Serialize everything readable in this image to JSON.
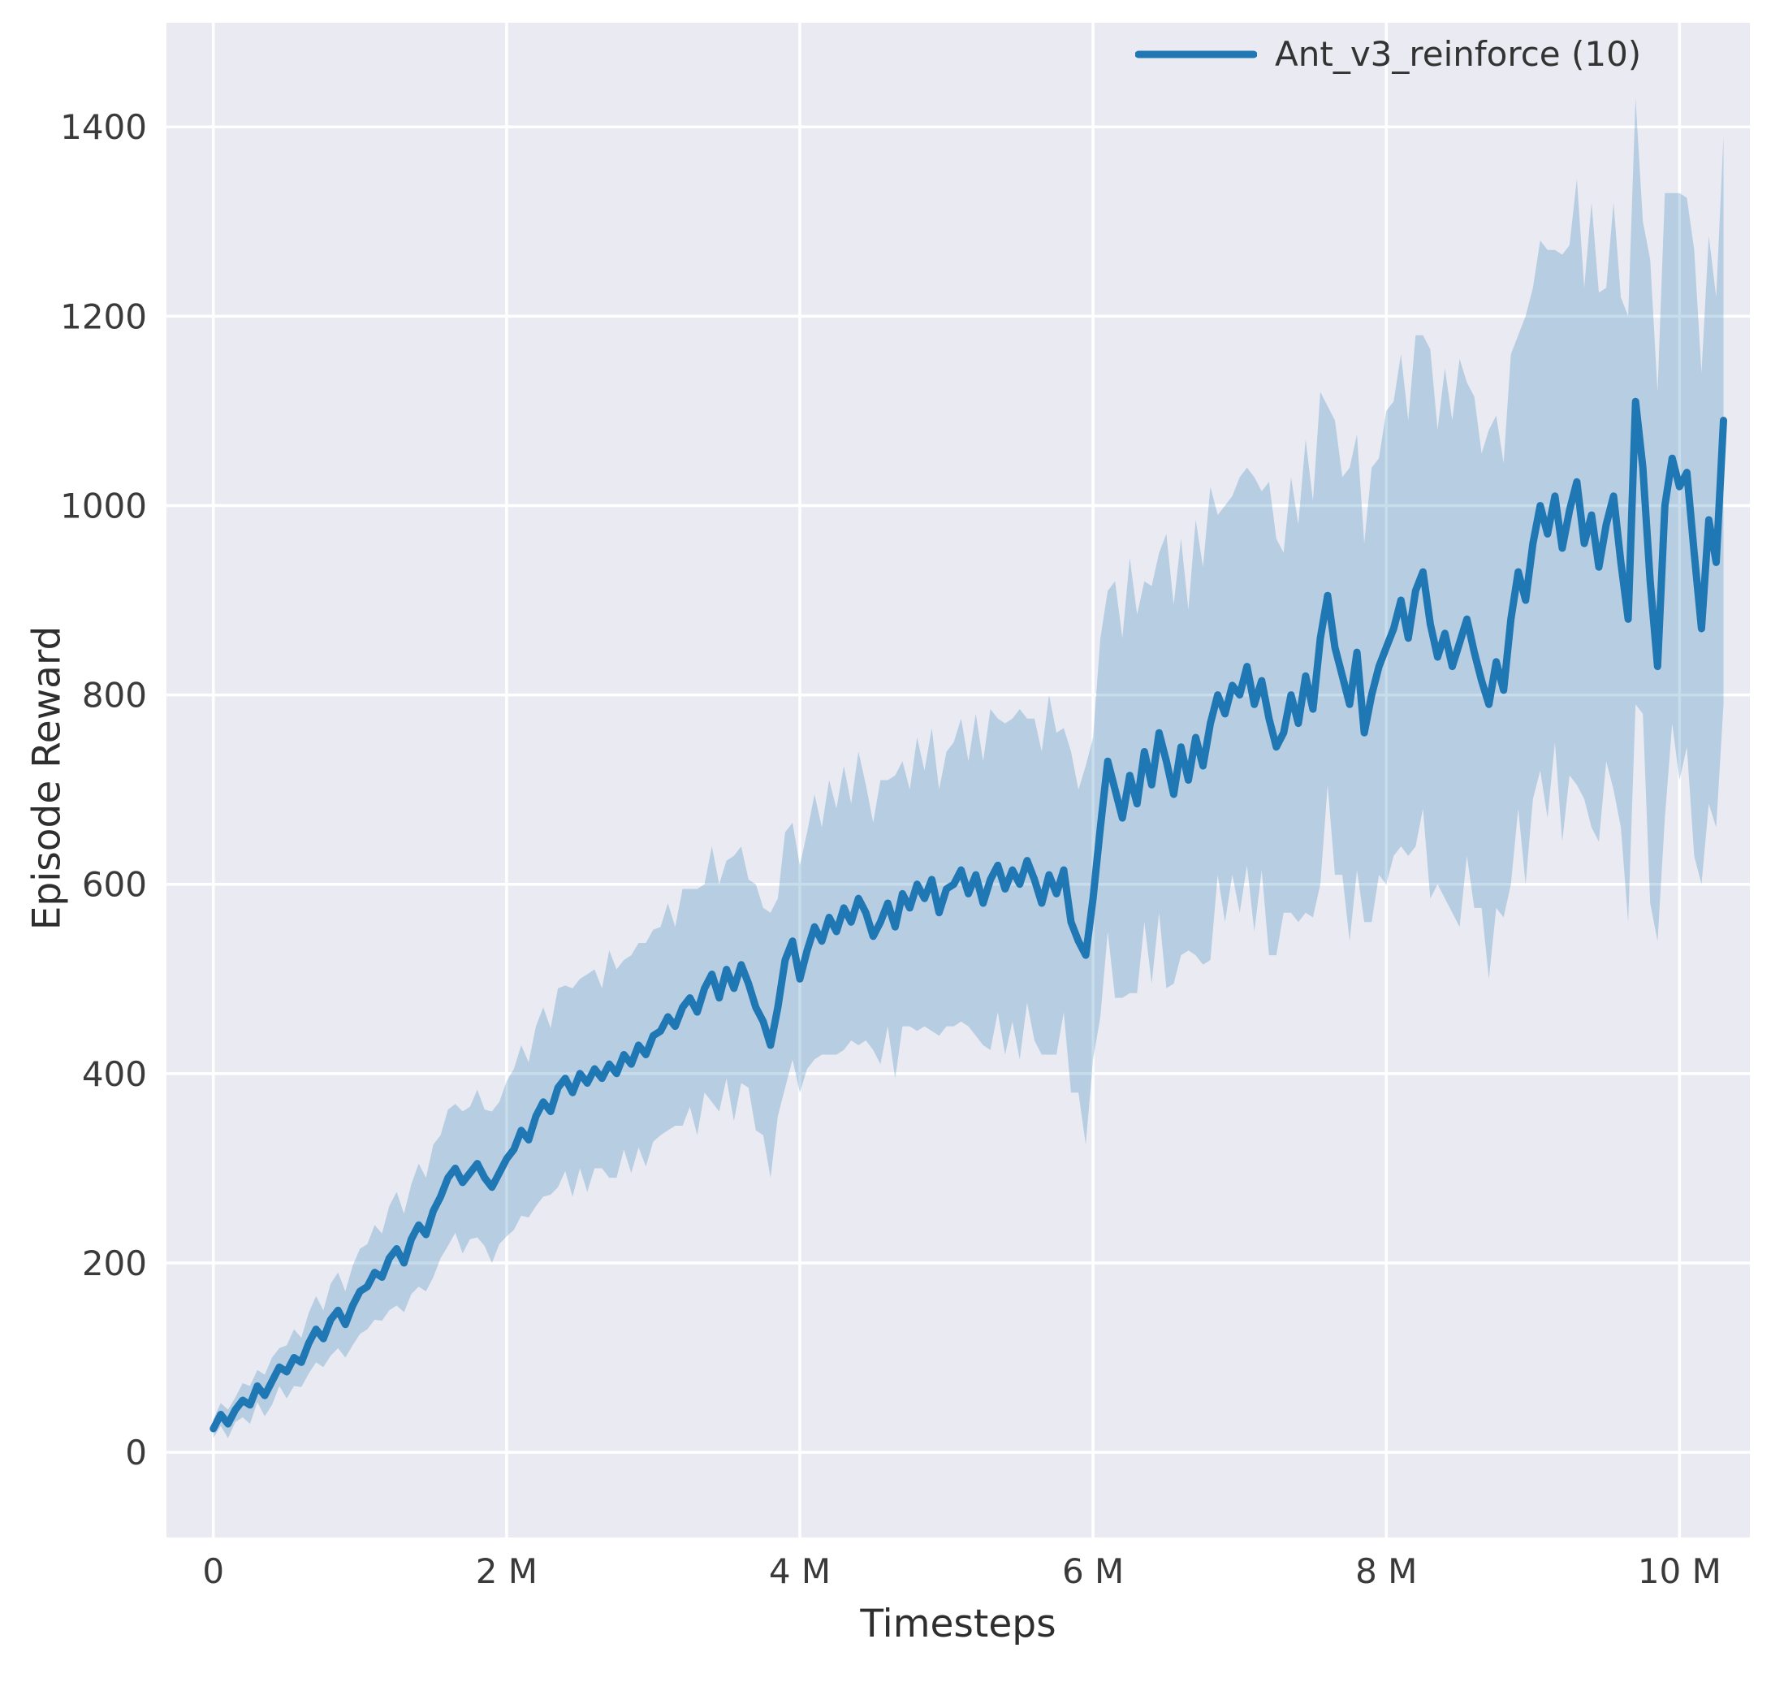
{
  "figure": {
    "bg": "#ffffff",
    "plot_bg": "#eaeaf2",
    "grid_color": "#ffffff",
    "line_color": "#1f77b4",
    "band_color": "#1f77b4",
    "band_opacity": 0.25,
    "tick_color": "#3a3a3a",
    "label_color": "#2e2e2e"
  },
  "chart_data": {
    "type": "line",
    "title": "",
    "xlabel": "Timesteps",
    "ylabel": "Episode Reward",
    "grid": true,
    "legend_position": "upper right",
    "legend": [
      {
        "label": "Ant_v3_reinforce (10)",
        "color": "#1f77b4"
      }
    ],
    "xlim": [
      -0.32,
      10.48
    ],
    "ylim": [
      -90,
      1510
    ],
    "x_unit": "M timesteps",
    "x_ticks": [
      {
        "value": 0,
        "label": "0"
      },
      {
        "value": 2,
        "label": "2 M"
      },
      {
        "value": 4,
        "label": "4 M"
      },
      {
        "value": 6,
        "label": "6 M"
      },
      {
        "value": 8,
        "label": "8 M"
      },
      {
        "value": 10,
        "label": "10 M"
      }
    ],
    "y_ticks": [
      {
        "value": 0,
        "label": "0"
      },
      {
        "value": 200,
        "label": "200"
      },
      {
        "value": 400,
        "label": "400"
      },
      {
        "value": 600,
        "label": "600"
      },
      {
        "value": 800,
        "label": "800"
      },
      {
        "value": 1000,
        "label": "1000"
      },
      {
        "value": 1200,
        "label": "1200"
      },
      {
        "value": 1400,
        "label": "1400"
      }
    ],
    "x_start": 0,
    "x_step": 0.05,
    "series": [
      {
        "name": "Ant_v3_reinforce (10)",
        "mean": [
          25,
          40,
          30,
          45,
          55,
          50,
          70,
          60,
          75,
          90,
          85,
          100,
          95,
          115,
          130,
          120,
          140,
          150,
          135,
          155,
          170,
          175,
          190,
          185,
          205,
          215,
          200,
          225,
          240,
          230,
          255,
          270,
          290,
          300,
          285,
          295,
          305,
          290,
          280,
          295,
          310,
          320,
          340,
          330,
          355,
          370,
          360,
          385,
          395,
          380,
          400,
          390,
          405,
          395,
          410,
          400,
          420,
          410,
          430,
          420,
          440,
          445,
          460,
          450,
          470,
          480,
          465,
          490,
          505,
          480,
          510,
          490,
          515,
          495,
          470,
          455,
          430,
          470,
          520,
          540,
          500,
          530,
          555,
          540,
          565,
          550,
          575,
          560,
          585,
          570,
          545,
          560,
          580,
          555,
          590,
          575,
          600,
          585,
          605,
          570,
          595,
          600,
          615,
          590,
          610,
          580,
          605,
          620,
          595,
          615,
          600,
          625,
          605,
          580,
          610,
          590,
          615,
          560,
          540,
          525,
          585,
          660,
          730,
          700,
          670,
          715,
          685,
          740,
          705,
          760,
          730,
          695,
          745,
          710,
          755,
          725,
          770,
          800,
          780,
          810,
          800,
          830,
          790,
          815,
          775,
          745,
          760,
          800,
          770,
          820,
          785,
          860,
          905,
          850,
          820,
          790,
          845,
          760,
          800,
          830,
          850,
          870,
          900,
          860,
          910,
          930,
          875,
          840,
          865,
          830,
          855,
          880,
          845,
          815,
          790,
          835,
          805,
          880,
          930,
          900,
          960,
          1000,
          970,
          1010,
          955,
          995,
          1025,
          960,
          990,
          935,
          980,
          1010,
          940,
          880,
          1110,
          1040,
          920,
          830,
          1000,
          1050,
          1020,
          1035,
          950,
          870,
          985,
          940,
          1090
        ],
        "band_halfwidth": [
          10,
          12,
          15,
          13,
          18,
          20,
          17,
          22,
          25,
          20,
          28,
          30,
          26,
          32,
          35,
          30,
          38,
          40,
          35,
          42,
          45,
          45,
          50,
          46,
          55,
          60,
          52,
          58,
          65,
          60,
          70,
          65,
          72,
          68,
          75,
          70,
          78,
          72,
          80,
          75,
          82,
          85,
          90,
          82,
          95,
          100,
          88,
          105,
          98,
          110,
          100,
          115,
          105,
          95,
          120,
          110,
          100,
          115,
          108,
          118,
          112,
          110,
          120,
          105,
          125,
          115,
          130,
          110,
          135,
          120,
          115,
          140,
          125,
          110,
          130,
          120,
          140,
          115,
          135,
          125,
          120,
          125,
          140,
          120,
          145,
          130,
          150,
          125,
          155,
          135,
          120,
          150,
          130,
          160,
          140,
          125,
          155,
          135,
          160,
          130,
          145,
          150,
          160,
          140,
          170,
          150,
          180,
          155,
          175,
          160,
          185,
          150,
          170,
          160,
          190,
          170,
          150,
          180,
          160,
          200,
          170,
          200,
          180,
          220,
          190,
          230,
          200,
          180,
          210,
          190,
          240,
          200,
          220,
          180,
          230,
          210,
          250,
          190,
          220,
          200,
          230,
          210,
          240,
          200,
          250,
          220,
          190,
          230,
          210,
          250,
          220,
          260,
          200,
          240,
          210,
          250,
          230,
          200,
          240,
          220,
          250,
          240,
          260,
          230,
          270,
          250,
          290,
          240,
          280,
          260,
          300,
          250,
          270,
          240,
          290,
          260,
          240,
          280,
          250,
          300,
          270,
          280,
          300,
          260,
          310,
          280,
          320,
          270,
          330,
          290,
          250,
          310,
          280,
          320,
          320,
          260,
          340,
          290,
          330,
          280,
          310,
          290,
          320,
          270,
          300,
          280,
          300
        ]
      }
    ]
  }
}
